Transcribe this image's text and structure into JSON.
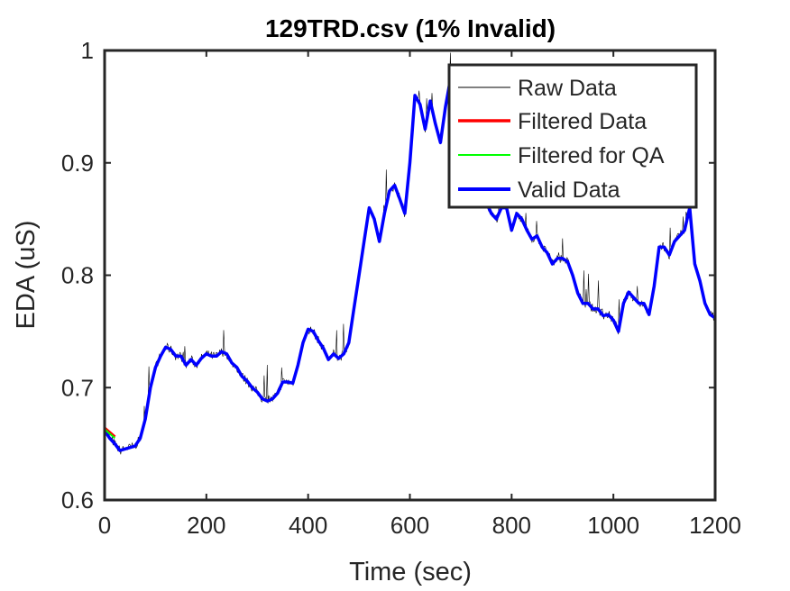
{
  "chart_data": {
    "type": "line",
    "title": "129TRD.csv (1% Invalid)",
    "xlabel": "Time (sec)",
    "ylabel": "EDA (uS)",
    "xlim": [
      0,
      1200
    ],
    "ylim": [
      0.6,
      1.0
    ],
    "xticks": [
      0,
      200,
      400,
      600,
      800,
      1000,
      1200
    ],
    "yticks": [
      0.6,
      0.7,
      0.8,
      0.9,
      1.0
    ],
    "xtick_labels": [
      "0",
      "200",
      "400",
      "600",
      "800",
      "1000",
      "1200"
    ],
    "ytick_labels": [
      "0.6",
      "0.7",
      "0.8",
      "0.9",
      "1"
    ],
    "grid": false,
    "legend_position": "top-right",
    "series": [
      {
        "name": "Raw Data",
        "color": "#000000",
        "style": "thin-noisy"
      },
      {
        "name": "Filtered Data",
        "color": "#ff0000",
        "x": [
          0,
          5,
          10,
          15,
          20
        ],
        "y": [
          0.664,
          0.662,
          0.66,
          0.658,
          0.656
        ]
      },
      {
        "name": "Filtered for QA",
        "color": "#00ff00",
        "x": [
          0,
          5,
          10,
          15,
          20
        ],
        "y": [
          0.663,
          0.661,
          0.659,
          0.657,
          0.655
        ]
      },
      {
        "name": "Valid Data",
        "color": "#0000ff",
        "x": [
          0,
          10,
          20,
          30,
          45,
          60,
          70,
          80,
          90,
          100,
          110,
          120,
          130,
          140,
          150,
          160,
          170,
          180,
          190,
          200,
          210,
          220,
          230,
          240,
          250,
          260,
          270,
          280,
          290,
          300,
          310,
          320,
          330,
          340,
          350,
          360,
          370,
          380,
          390,
          400,
          410,
          420,
          430,
          440,
          450,
          460,
          470,
          480,
          490,
          500,
          510,
          520,
          530,
          540,
          550,
          560,
          570,
          580,
          590,
          600,
          610,
          620,
          630,
          640,
          650,
          660,
          670,
          680,
          690,
          700,
          710,
          720,
          730,
          740,
          750,
          760,
          770,
          780,
          790,
          800,
          810,
          820,
          830,
          840,
          850,
          860,
          870,
          880,
          890,
          900,
          910,
          920,
          930,
          940,
          950,
          960,
          970,
          980,
          990,
          1000,
          1010,
          1020,
          1030,
          1040,
          1050,
          1060,
          1070,
          1080,
          1090,
          1100,
          1110,
          1120,
          1130,
          1140,
          1150,
          1160,
          1170,
          1180,
          1190,
          1200
        ],
        "y": [
          0.662,
          0.655,
          0.65,
          0.644,
          0.646,
          0.648,
          0.655,
          0.672,
          0.7,
          0.718,
          0.728,
          0.736,
          0.734,
          0.728,
          0.728,
          0.72,
          0.725,
          0.72,
          0.726,
          0.73,
          0.728,
          0.728,
          0.732,
          0.73,
          0.722,
          0.718,
          0.71,
          0.706,
          0.7,
          0.696,
          0.69,
          0.688,
          0.69,
          0.695,
          0.705,
          0.705,
          0.704,
          0.72,
          0.74,
          0.752,
          0.75,
          0.742,
          0.735,
          0.725,
          0.73,
          0.726,
          0.73,
          0.74,
          0.77,
          0.8,
          0.83,
          0.86,
          0.85,
          0.83,
          0.855,
          0.875,
          0.88,
          0.868,
          0.855,
          0.9,
          0.96,
          0.952,
          0.93,
          0.955,
          0.935,
          0.918,
          0.95,
          0.975,
          0.97,
          0.94,
          0.92,
          0.9,
          0.885,
          0.87,
          0.865,
          0.855,
          0.85,
          0.86,
          0.86,
          0.84,
          0.855,
          0.85,
          0.84,
          0.832,
          0.835,
          0.825,
          0.82,
          0.81,
          0.815,
          0.815,
          0.812,
          0.8,
          0.784,
          0.775,
          0.775,
          0.77,
          0.77,
          0.764,
          0.765,
          0.76,
          0.75,
          0.775,
          0.785,
          0.78,
          0.775,
          0.775,
          0.765,
          0.79,
          0.825,
          0.825,
          0.818,
          0.83,
          0.835,
          0.84,
          0.86,
          0.81,
          0.795,
          0.775,
          0.765,
          0.762
        ]
      }
    ]
  }
}
